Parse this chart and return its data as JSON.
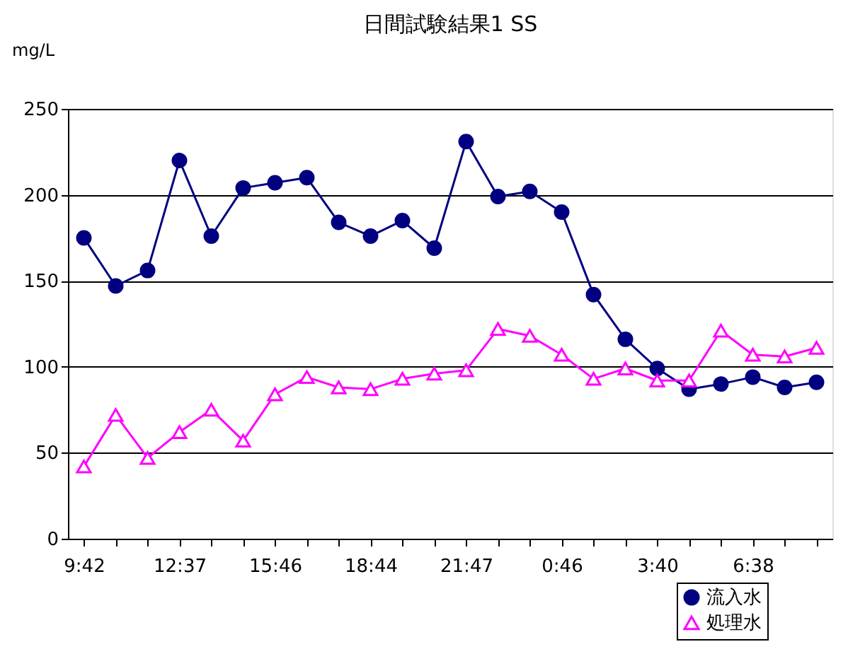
{
  "chart_data": {
    "type": "line",
    "title": "日間試験結果1  SS",
    "ylabel": "mg/L",
    "categories": [
      "9:42",
      null,
      null,
      "12:37",
      null,
      null,
      "15:46",
      null,
      null,
      "18:44",
      null,
      null,
      "21:47",
      null,
      null,
      "0:46",
      null,
      null,
      "3:40",
      null,
      null,
      "6:38",
      null,
      null
    ],
    "series": [
      {
        "name": "流入水",
        "color": "#000080",
        "marker": "circle",
        "values": [
          175,
          147,
          156,
          220,
          176,
          204,
          207,
          210,
          184,
          176,
          185,
          169,
          231,
          199,
          202,
          190,
          142,
          116,
          99,
          87,
          90,
          94,
          88,
          91
        ]
      },
      {
        "name": "処理水",
        "color": "#ff00ff",
        "marker": "triangle",
        "values": [
          42,
          72,
          47,
          62,
          75,
          57,
          84,
          94,
          88,
          87,
          93,
          96,
          98,
          122,
          118,
          107,
          93,
          99,
          92,
          92,
          121,
          107,
          106,
          111
        ]
      }
    ],
    "ylim": [
      0,
      250
    ],
    "yticks": [
      0,
      50,
      100,
      150,
      200,
      250
    ],
    "grid": "y",
    "legend": "bottom right"
  }
}
